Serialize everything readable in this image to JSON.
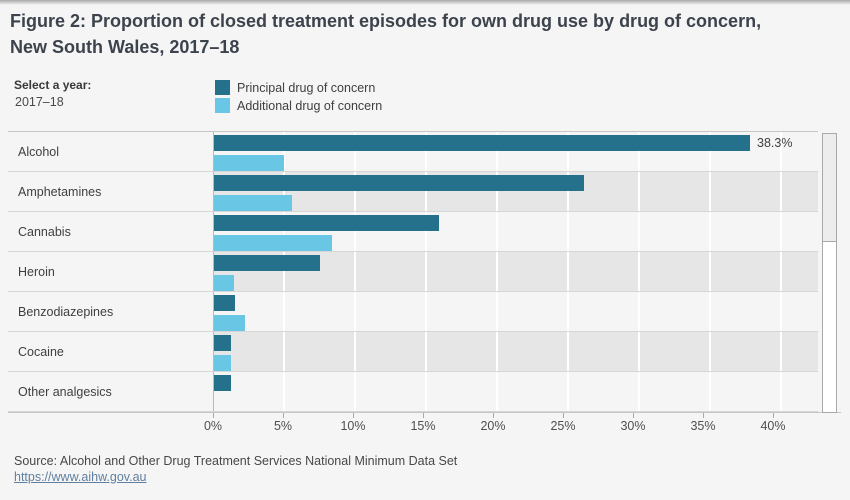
{
  "title": {
    "line1": "Figure 2: Proportion of closed treatment episodes for own drug use by drug of concern,",
    "line2": "New South Wales, 2017–18"
  },
  "year_selector": {
    "label": "Select a year:",
    "value": "2017–18"
  },
  "legend": [
    {
      "label": "Principal drug of concern",
      "color": "#25718b"
    },
    {
      "label": "Additional drug of concern",
      "color": "#69c6e4"
    }
  ],
  "chart_data": {
    "type": "bar",
    "orientation": "horizontal",
    "title": "Figure 2: Proportion of closed treatment episodes for own drug use by drug of concern, New South Wales, 2017–18",
    "categories": [
      "Alcohol",
      "Amphetamines",
      "Cannabis",
      "Heroin",
      "Benzodiazepines",
      "Cocaine",
      "Other analgesics"
    ],
    "series": [
      {
        "name": "Principal drug of concern",
        "color": "#25718b",
        "values": [
          38.3,
          26.4,
          16.1,
          7.6,
          1.5,
          1.2,
          1.2
        ]
      },
      {
        "name": "Additional drug of concern",
        "color": "#69c6e4",
        "values": [
          5.0,
          5.6,
          8.4,
          1.4,
          2.2,
          1.2,
          null
        ]
      }
    ],
    "value_labels": [
      {
        "category_index": 0,
        "series_index": 0,
        "text": "38.3%"
      }
    ],
    "x_ticks": [
      {
        "label": "0%",
        "value": 0
      },
      {
        "label": "5%",
        "value": 5
      },
      {
        "label": "10%",
        "value": 10
      },
      {
        "label": "15%",
        "value": 15
      },
      {
        "label": "20%",
        "value": 20
      },
      {
        "label": "25%",
        "value": 25
      },
      {
        "label": "30%",
        "value": 30
      },
      {
        "label": "35%",
        "value": 35
      },
      {
        "label": "40%",
        "value": 40
      }
    ],
    "xlim": [
      0,
      43.2
    ],
    "grid": true,
    "legend_position": "top",
    "banded_row_color": "#e6e6e6",
    "striped_categories": [
      "Amphetamines",
      "Heroin",
      "Cocaine"
    ]
  },
  "footer": {
    "source": "Source: Alcohol and Other Drug Treatment Services National Minimum Data Set",
    "link": "https://www.aihw.gov.au"
  },
  "colors": {
    "principal": "#25718b",
    "additional": "#69c6e4",
    "page_background": "#f5f5f5",
    "band": "#e6e6e6",
    "gridline": "#ffffff",
    "title_text": "#3c434d",
    "link_text": "#61809f"
  }
}
